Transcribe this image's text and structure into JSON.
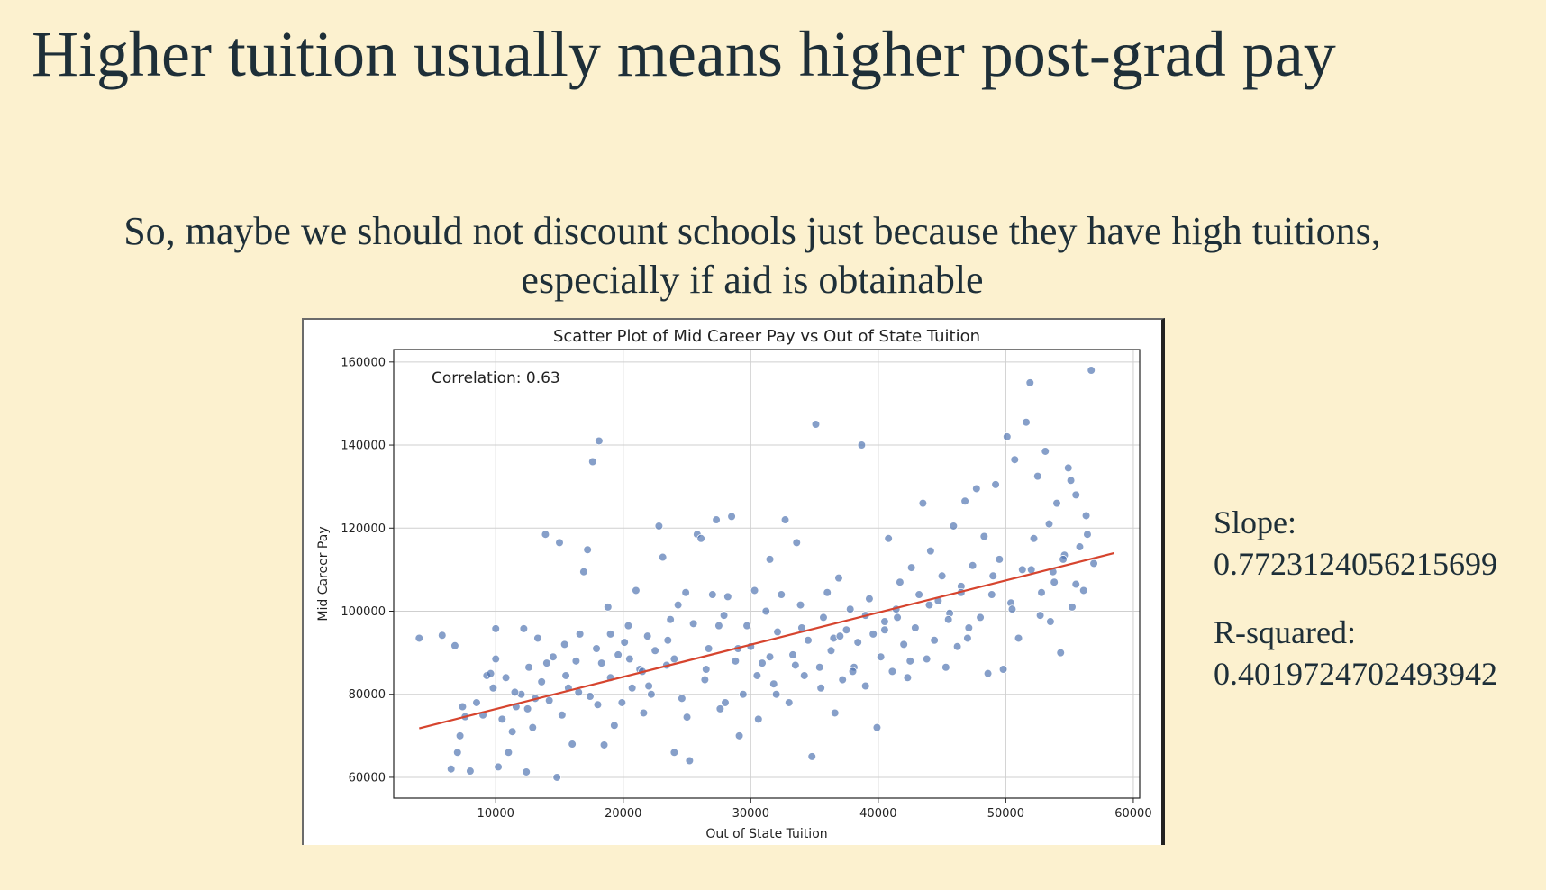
{
  "slide": {
    "title": "Higher tuition usually means higher post-grad pay",
    "subtitle_line1": "So, maybe we should not discount schools just because they have high tuitions,",
    "subtitle_line2": "especially if aid is obtainable"
  },
  "stats": {
    "slope_label": "Slope:",
    "slope_value": "0.7723124056215699",
    "r2_label": "R-squared:",
    "r2_value": "0.4019724702493942"
  },
  "colors": {
    "background": "#fcf1cf",
    "point": "#4c72b0",
    "trend": "#d6442e",
    "text": "#1e2f38"
  },
  "chart_data": {
    "type": "scatter",
    "title": "Scatter Plot of Mid Career Pay vs Out of State Tuition",
    "xlabel": "Out of State Tuition",
    "ylabel": "Mid Career Pay",
    "xlim": [
      2000,
      60500
    ],
    "ylim": [
      55000,
      163000
    ],
    "xticks": [
      10000,
      20000,
      30000,
      40000,
      50000,
      60000
    ],
    "yticks": [
      60000,
      80000,
      100000,
      120000,
      140000,
      160000
    ],
    "grid": true,
    "annotation": "Correlation: 0.63",
    "trendline": {
      "x": [
        4000,
        58500
      ],
      "y": [
        71800,
        114000
      ]
    },
    "points": [
      [
        4000,
        93500
      ],
      [
        5800,
        94200
      ],
      [
        6500,
        62000
      ],
      [
        6800,
        91700
      ],
      [
        7000,
        66000
      ],
      [
        7200,
        70000
      ],
      [
        7400,
        77000
      ],
      [
        7600,
        74600
      ],
      [
        8000,
        61500
      ],
      [
        8500,
        78000
      ],
      [
        9000,
        75000
      ],
      [
        9300,
        84500
      ],
      [
        9600,
        85000
      ],
      [
        9800,
        81500
      ],
      [
        10000,
        88500
      ],
      [
        10000,
        95800
      ],
      [
        10200,
        62500
      ],
      [
        10500,
        74000
      ],
      [
        10800,
        84000
      ],
      [
        11000,
        66000
      ],
      [
        11300,
        71000
      ],
      [
        11600,
        77000
      ],
      [
        12000,
        80000
      ],
      [
        12200,
        95800
      ],
      [
        12400,
        61300
      ],
      [
        12600,
        86500
      ],
      [
        12900,
        72000
      ],
      [
        13100,
        79000
      ],
      [
        13300,
        93500
      ],
      [
        13600,
        83000
      ],
      [
        13900,
        118500
      ],
      [
        14200,
        78500
      ],
      [
        14500,
        89000
      ],
      [
        14800,
        60000
      ],
      [
        15000,
        116500
      ],
      [
        15200,
        75000
      ],
      [
        15400,
        92000
      ],
      [
        15700,
        81500
      ],
      [
        16000,
        68000
      ],
      [
        16300,
        88000
      ],
      [
        16600,
        94500
      ],
      [
        16900,
        109500
      ],
      [
        17200,
        114800
      ],
      [
        17400,
        79500
      ],
      [
        17600,
        136000
      ],
      [
        17900,
        91000
      ],
      [
        18100,
        141000
      ],
      [
        18300,
        87500
      ],
      [
        18500,
        67800
      ],
      [
        18800,
        101000
      ],
      [
        19000,
        84000
      ],
      [
        19300,
        72500
      ],
      [
        19600,
        89500
      ],
      [
        19900,
        78000
      ],
      [
        20100,
        92500
      ],
      [
        20400,
        96500
      ],
      [
        20700,
        81500
      ],
      [
        21000,
        105000
      ],
      [
        21300,
        86000
      ],
      [
        21600,
        75500
      ],
      [
        21900,
        94000
      ],
      [
        22200,
        80000
      ],
      [
        22500,
        90500
      ],
      [
        22800,
        120500
      ],
      [
        23100,
        113000
      ],
      [
        23400,
        87000
      ],
      [
        23700,
        98000
      ],
      [
        24000,
        66000
      ],
      [
        24300,
        101500
      ],
      [
        24600,
        79000
      ],
      [
        24900,
        104500
      ],
      [
        25200,
        64000
      ],
      [
        25500,
        97000
      ],
      [
        25800,
        118500
      ],
      [
        26100,
        117500
      ],
      [
        26400,
        83500
      ],
      [
        26700,
        91000
      ],
      [
        27000,
        104000
      ],
      [
        27300,
        122000
      ],
      [
        27600,
        76500
      ],
      [
        27900,
        99000
      ],
      [
        28200,
        103500
      ],
      [
        28500,
        122800
      ],
      [
        28800,
        88000
      ],
      [
        29100,
        70000
      ],
      [
        29400,
        80000
      ],
      [
        29700,
        96500
      ],
      [
        30000,
        91500
      ],
      [
        30300,
        105000
      ],
      [
        30600,
        74000
      ],
      [
        30900,
        87500
      ],
      [
        31200,
        100000
      ],
      [
        31500,
        112500
      ],
      [
        31800,
        82500
      ],
      [
        32100,
        95000
      ],
      [
        32400,
        104000
      ],
      [
        32700,
        122000
      ],
      [
        33000,
        78000
      ],
      [
        33300,
        89500
      ],
      [
        33600,
        116500
      ],
      [
        33900,
        101500
      ],
      [
        34200,
        84500
      ],
      [
        34500,
        93000
      ],
      [
        34800,
        65000
      ],
      [
        35100,
        145000
      ],
      [
        35400,
        86500
      ],
      [
        35700,
        98500
      ],
      [
        36000,
        104500
      ],
      [
        36300,
        90500
      ],
      [
        36600,
        75500
      ],
      [
        36900,
        108000
      ],
      [
        37200,
        83500
      ],
      [
        37500,
        95500
      ],
      [
        37800,
        100500
      ],
      [
        38100,
        86500
      ],
      [
        38400,
        92500
      ],
      [
        38700,
        140000
      ],
      [
        39000,
        82000
      ],
      [
        39300,
        103000
      ],
      [
        39600,
        94500
      ],
      [
        39900,
        72000
      ],
      [
        40200,
        89000
      ],
      [
        40500,
        97500
      ],
      [
        40800,
        117500
      ],
      [
        41100,
        85500
      ],
      [
        41400,
        100500
      ],
      [
        41700,
        107000
      ],
      [
        42000,
        92000
      ],
      [
        42300,
        84000
      ],
      [
        42600,
        110500
      ],
      [
        42900,
        96000
      ],
      [
        43200,
        104000
      ],
      [
        43500,
        126000
      ],
      [
        43800,
        88500
      ],
      [
        44100,
        114500
      ],
      [
        44400,
        93000
      ],
      [
        44700,
        102500
      ],
      [
        45000,
        108500
      ],
      [
        45300,
        86500
      ],
      [
        45600,
        99500
      ],
      [
        45900,
        120500
      ],
      [
        46200,
        91500
      ],
      [
        46500,
        106000
      ],
      [
        46800,
        126500
      ],
      [
        47100,
        96000
      ],
      [
        47400,
        111000
      ],
      [
        47700,
        129500
      ],
      [
        48000,
        98500
      ],
      [
        48300,
        118000
      ],
      [
        48600,
        85000
      ],
      [
        48900,
        104000
      ],
      [
        49200,
        130500
      ],
      [
        49500,
        112500
      ],
      [
        49800,
        86000
      ],
      [
        50100,
        142000
      ],
      [
        50400,
        102000
      ],
      [
        50700,
        136500
      ],
      [
        51000,
        93500
      ],
      [
        51300,
        110000
      ],
      [
        51600,
        145500
      ],
      [
        51900,
        155000
      ],
      [
        52200,
        117500
      ],
      [
        52500,
        132500
      ],
      [
        52800,
        104500
      ],
      [
        53100,
        138500
      ],
      [
        53400,
        121000
      ],
      [
        53700,
        109500
      ],
      [
        54000,
        126000
      ],
      [
        54300,
        90000
      ],
      [
        54600,
        113500
      ],
      [
        54900,
        134500
      ],
      [
        55200,
        101000
      ],
      [
        55500,
        128000
      ],
      [
        55800,
        115500
      ],
      [
        56100,
        105000
      ],
      [
        56400,
        118500
      ],
      [
        56700,
        158000
      ],
      [
        56900,
        111500
      ],
      [
        11500,
        80500
      ],
      [
        14000,
        87500
      ],
      [
        16500,
        80500
      ],
      [
        19000,
        94500
      ],
      [
        21500,
        85500
      ],
      [
        24000,
        88500
      ],
      [
        26500,
        86000
      ],
      [
        29000,
        91000
      ],
      [
        31500,
        89000
      ],
      [
        34000,
        96000
      ],
      [
        36500,
        93500
      ],
      [
        39000,
        99000
      ],
      [
        41500,
        98500
      ],
      [
        44000,
        101500
      ],
      [
        46500,
        104500
      ],
      [
        49000,
        108500
      ],
      [
        52000,
        110000
      ],
      [
        54500,
        112500
      ],
      [
        18000,
        77500
      ],
      [
        22000,
        82000
      ],
      [
        25000,
        74500
      ],
      [
        28000,
        78000
      ],
      [
        32000,
        80000
      ],
      [
        35500,
        81500
      ],
      [
        38000,
        85500
      ],
      [
        42500,
        88000
      ],
      [
        47000,
        93500
      ],
      [
        53500,
        97500
      ],
      [
        12500,
        76500
      ],
      [
        15500,
        84500
      ],
      [
        20500,
        88500
      ],
      [
        23500,
        93000
      ],
      [
        27500,
        96500
      ],
      [
        30500,
        84500
      ],
      [
        33500,
        87000
      ],
      [
        37000,
        94000
      ],
      [
        40500,
        95500
      ],
      [
        45500,
        98000
      ],
      [
        50500,
        100500
      ],
      [
        55500,
        106500
      ],
      [
        56300,
        123000
      ],
      [
        55100,
        131500
      ],
      [
        53800,
        107000
      ],
      [
        52700,
        99000
      ]
    ]
  }
}
